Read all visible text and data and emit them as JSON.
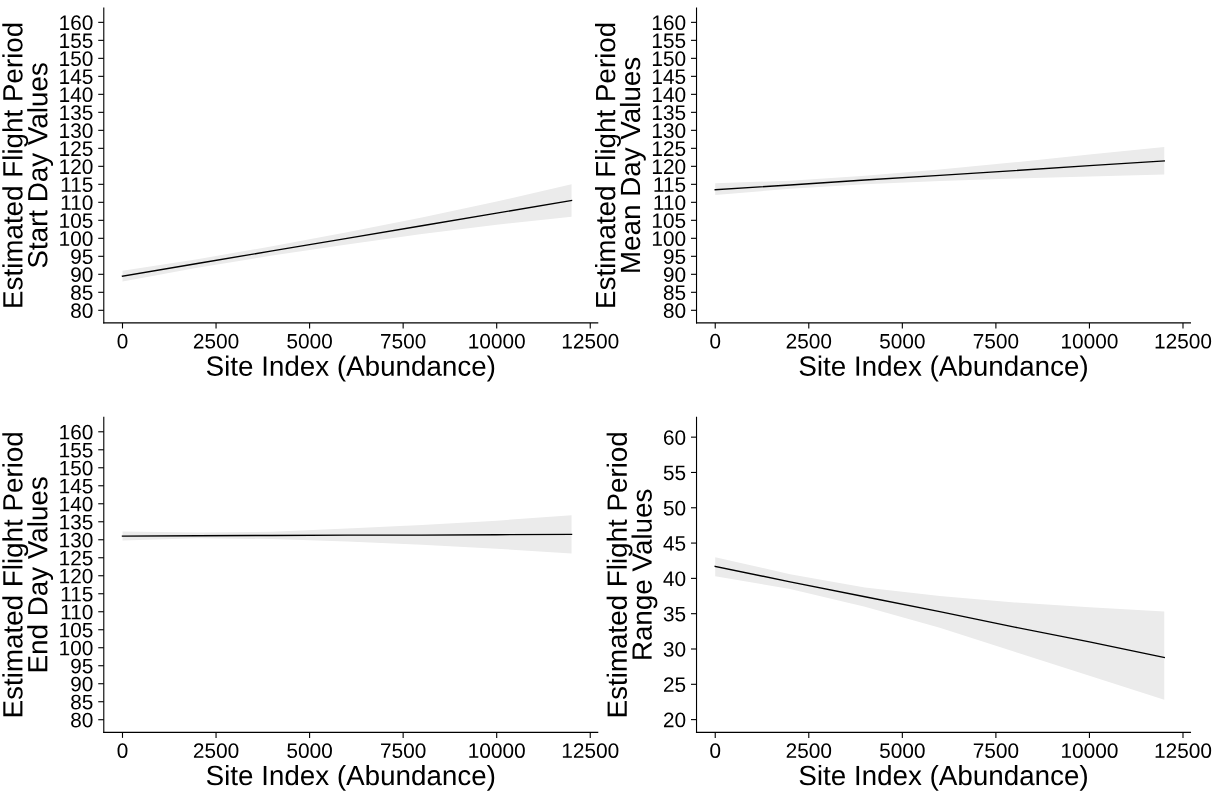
{
  "chart_data": [
    {
      "type": "line",
      "xlabel": "Site Index (Abundance)",
      "ylabel": "Estimated Flight Period\nStart Day Values",
      "xlim": [
        -500,
        12700
      ],
      "ylim": [
        76.5,
        164
      ],
      "xticks": [
        0,
        2500,
        5000,
        7500,
        10000,
        12500
      ],
      "yticks": [
        80,
        85,
        90,
        95,
        100,
        105,
        110,
        115,
        120,
        125,
        130,
        135,
        140,
        145,
        150,
        155,
        160
      ],
      "grid": false,
      "series": [
        {
          "color": "#000000",
          "x": [
            0,
            2000,
            4000,
            6000,
            8000,
            10000,
            12000
          ],
          "values": [
            89.5,
            93,
            96.5,
            100,
            103.5,
            107,
            110.5
          ],
          "lower": [
            88,
            91.8,
            95.2,
            98.3,
            101.2,
            103.8,
            106
          ],
          "upper": [
            91,
            94.2,
            97.8,
            101.7,
            105.8,
            110.2,
            115
          ]
        }
      ]
    },
    {
      "type": "line",
      "xlabel": "Site Index (Abundance)",
      "ylabel": "Estimated Flight Period\nMean Day Values",
      "xlim": [
        -500,
        12700
      ],
      "ylim": [
        76.5,
        164
      ],
      "xticks": [
        0,
        2500,
        5000,
        7500,
        10000,
        12500
      ],
      "yticks": [
        80,
        85,
        90,
        95,
        100,
        105,
        110,
        115,
        120,
        125,
        130,
        135,
        140,
        145,
        150,
        155,
        160
      ],
      "grid": false,
      "series": [
        {
          "color": "#000000",
          "x": [
            0,
            2000,
            4000,
            6000,
            8000,
            10000,
            12000
          ],
          "values": [
            113.5,
            114.8,
            116.2,
            117.5,
            118.8,
            120.2,
            121.5
          ],
          "lower": [
            112,
            113.8,
            115,
            115.9,
            116.6,
            117.2,
            117.7
          ],
          "upper": [
            115.3,
            116,
            117.4,
            119.1,
            121.1,
            123.3,
            125.4
          ]
        }
      ]
    },
    {
      "type": "line",
      "xlabel": "Site Index (Abundance)",
      "ylabel": "Estimated Flight Period\nEnd Day Values",
      "xlim": [
        -500,
        12700
      ],
      "ylim": [
        76.5,
        164
      ],
      "xticks": [
        0,
        2500,
        5000,
        7500,
        10000,
        12500
      ],
      "yticks": [
        80,
        85,
        90,
        95,
        100,
        105,
        110,
        115,
        120,
        125,
        130,
        135,
        140,
        145,
        150,
        155,
        160
      ],
      "grid": false,
      "series": [
        {
          "color": "#000000",
          "x": [
            0,
            2000,
            4000,
            6000,
            8000,
            10000,
            12000
          ],
          "values": [
            131,
            131.1,
            131.2,
            131.3,
            131.3,
            131.4,
            131.5
          ],
          "lower": [
            129.8,
            130.4,
            130.2,
            129.5,
            128.6,
            127.5,
            126.2
          ],
          "upper": [
            132.3,
            132,
            132.2,
            133.1,
            134.1,
            135.3,
            136.8
          ]
        }
      ]
    },
    {
      "type": "line",
      "xlabel": "Site Index (Abundance)",
      "ylabel": "Estimated Flight Period\nRange Values",
      "xlim": [
        -500,
        12700
      ],
      "ylim": [
        18.2,
        62.8
      ],
      "xticks": [
        0,
        2500,
        5000,
        7500,
        10000,
        12500
      ],
      "yticks": [
        20,
        25,
        30,
        35,
        40,
        45,
        50,
        55,
        60
      ],
      "grid": false,
      "series": [
        {
          "color": "#000000",
          "x": [
            0,
            2000,
            4000,
            6000,
            8000,
            10000,
            12000
          ],
          "values": [
            41.7,
            39.5,
            37.4,
            35.3,
            33.1,
            31,
            28.8
          ],
          "lower": [
            40.3,
            38.5,
            36,
            33,
            29.6,
            26.2,
            22.8
          ],
          "upper": [
            43,
            40.6,
            38.7,
            37.5,
            36.6,
            35.9,
            35.3
          ]
        }
      ]
    }
  ]
}
